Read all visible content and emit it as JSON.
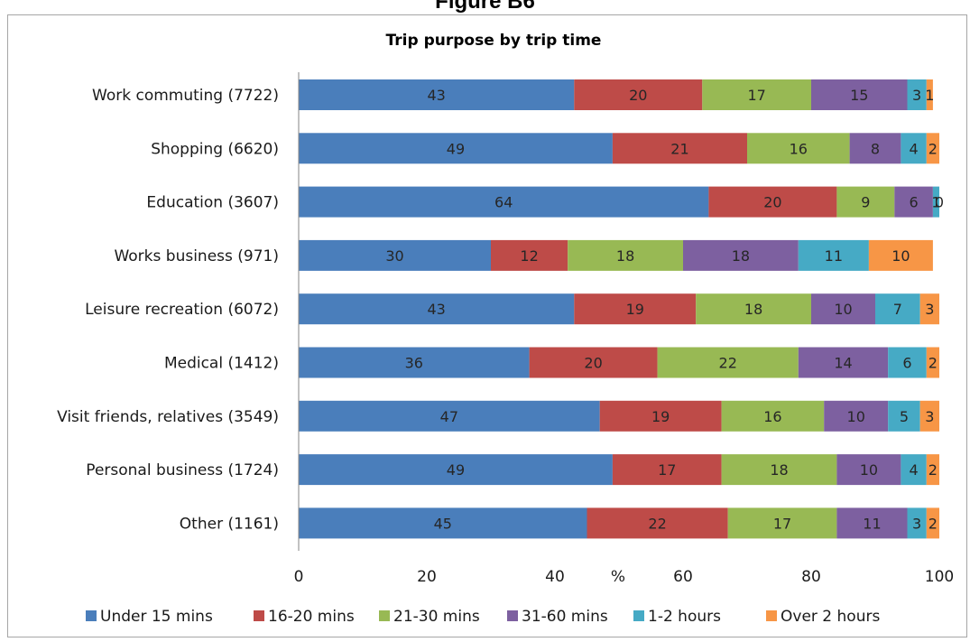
{
  "figure_heading": "Figure B6",
  "chart_data": {
    "type": "bar",
    "orientation": "horizontal",
    "stacked": true,
    "title": "Trip purpose by trip time",
    "xlabel": "%",
    "ylabel": "",
    "xlim": [
      0,
      100
    ],
    "xticks": [
      "0",
      "20",
      "40",
      "60",
      "80",
      "100"
    ],
    "grid": false,
    "legend_position": "bottom",
    "categories": [
      "Work commuting (7722)",
      "Shopping (6620)",
      "Education (3607)",
      "Works business (971)",
      "Leisure recreation  (6072)",
      "Medical (1412)",
      "Visit friends, relatives (3549)",
      "Personal business (1724)",
      "Other (1161)"
    ],
    "series": [
      {
        "name": "Under 15 mins",
        "color": "#4a7ebb",
        "values": [
          43,
          49,
          64,
          30,
          43,
          36,
          47,
          49,
          45
        ],
        "labels": [
          "43",
          "49",
          "64",
          "30",
          "43",
          "36",
          "47",
          "49",
          "45"
        ]
      },
      {
        "name": "16-20 mins",
        "color": "#be4b48",
        "values": [
          20,
          21,
          20,
          12,
          19,
          20,
          19,
          17,
          22
        ],
        "labels": [
          "20",
          "21",
          "20",
          "12",
          "19",
          "20",
          "19",
          "17",
          "22"
        ]
      },
      {
        "name": "21-30 mins",
        "color": "#98b954",
        "values": [
          17,
          16,
          9,
          18,
          18,
          22,
          16,
          18,
          17
        ],
        "labels": [
          "17",
          "16",
          "9",
          "18",
          "18",
          "22",
          "16",
          "18",
          "17"
        ]
      },
      {
        "name": "31-60 mins",
        "color": "#7d60a0",
        "values": [
          15,
          8,
          6,
          18,
          10,
          14,
          10,
          10,
          11
        ],
        "labels": [
          "15",
          "8",
          "6",
          "18",
          "10",
          "14",
          "10",
          "10",
          "11"
        ]
      },
      {
        "name": "1-2 hours",
        "color": "#46aac5",
        "values": [
          3,
          4,
          1,
          11,
          7,
          6,
          5,
          4,
          3
        ],
        "labels": [
          "3",
          "4",
          "1",
          "11",
          "7",
          "6",
          "5",
          "4",
          "3"
        ]
      },
      {
        "name": "Over 2 hours",
        "color": "#f79646",
        "values": [
          1,
          2,
          0,
          10,
          3,
          2,
          3,
          2,
          2
        ],
        "labels": [
          "1",
          "2",
          "0",
          "10",
          "3",
          "2",
          "3",
          "2",
          "2"
        ]
      }
    ]
  }
}
